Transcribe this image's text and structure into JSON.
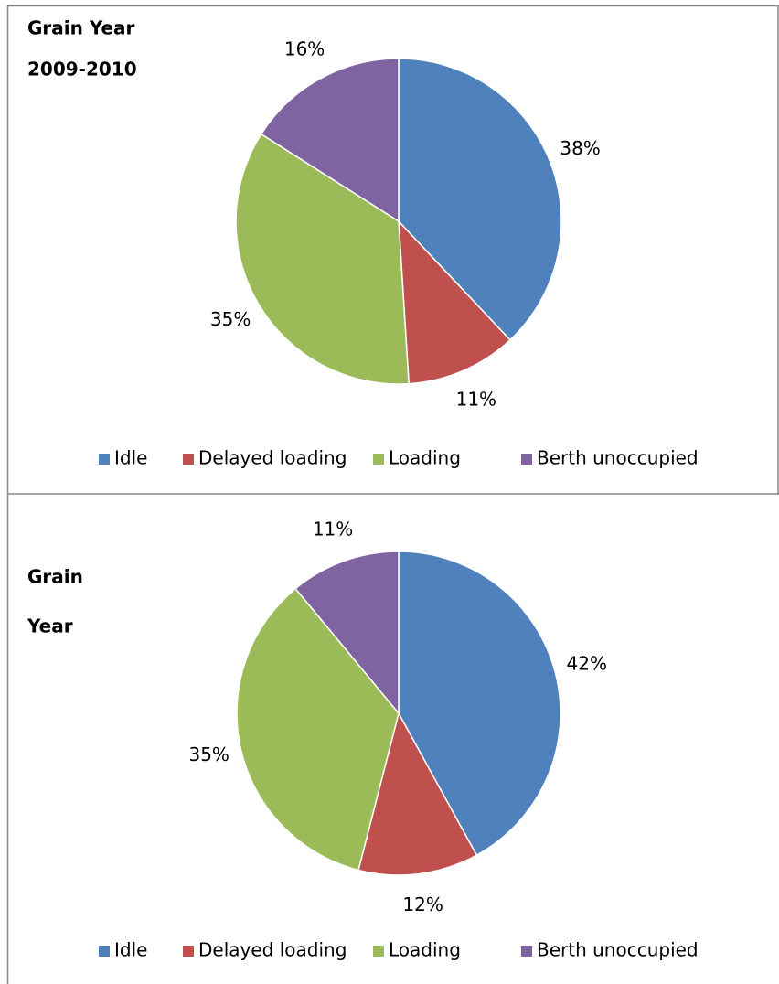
{
  "chart_data": [
    {
      "type": "pie",
      "title": [
        "Grain Year",
        "2009-2010"
      ],
      "categories": [
        "Idle",
        "Delayed loading",
        "Loading",
        "Berth unoccupied"
      ],
      "values": [
        38,
        11,
        35,
        16
      ],
      "value_labels": [
        "38%",
        "11%",
        "35%",
        "16%"
      ],
      "colors": [
        "#4f81bd",
        "#c0504d",
        "#9bbb59",
        "#8064a2"
      ],
      "legend": "bottom"
    },
    {
      "type": "pie",
      "title": [
        "Grain",
        "Year"
      ],
      "categories": [
        "Idle",
        "Delayed loading",
        "Loading",
        "Berth unoccupied"
      ],
      "values": [
        42,
        12,
        35,
        11
      ],
      "value_labels": [
        "42%",
        "12%",
        "35%",
        "11%"
      ],
      "colors": [
        "#4f81bd",
        "#c0504d",
        "#9bbb59",
        "#8064a2"
      ],
      "legend": "bottom"
    }
  ]
}
